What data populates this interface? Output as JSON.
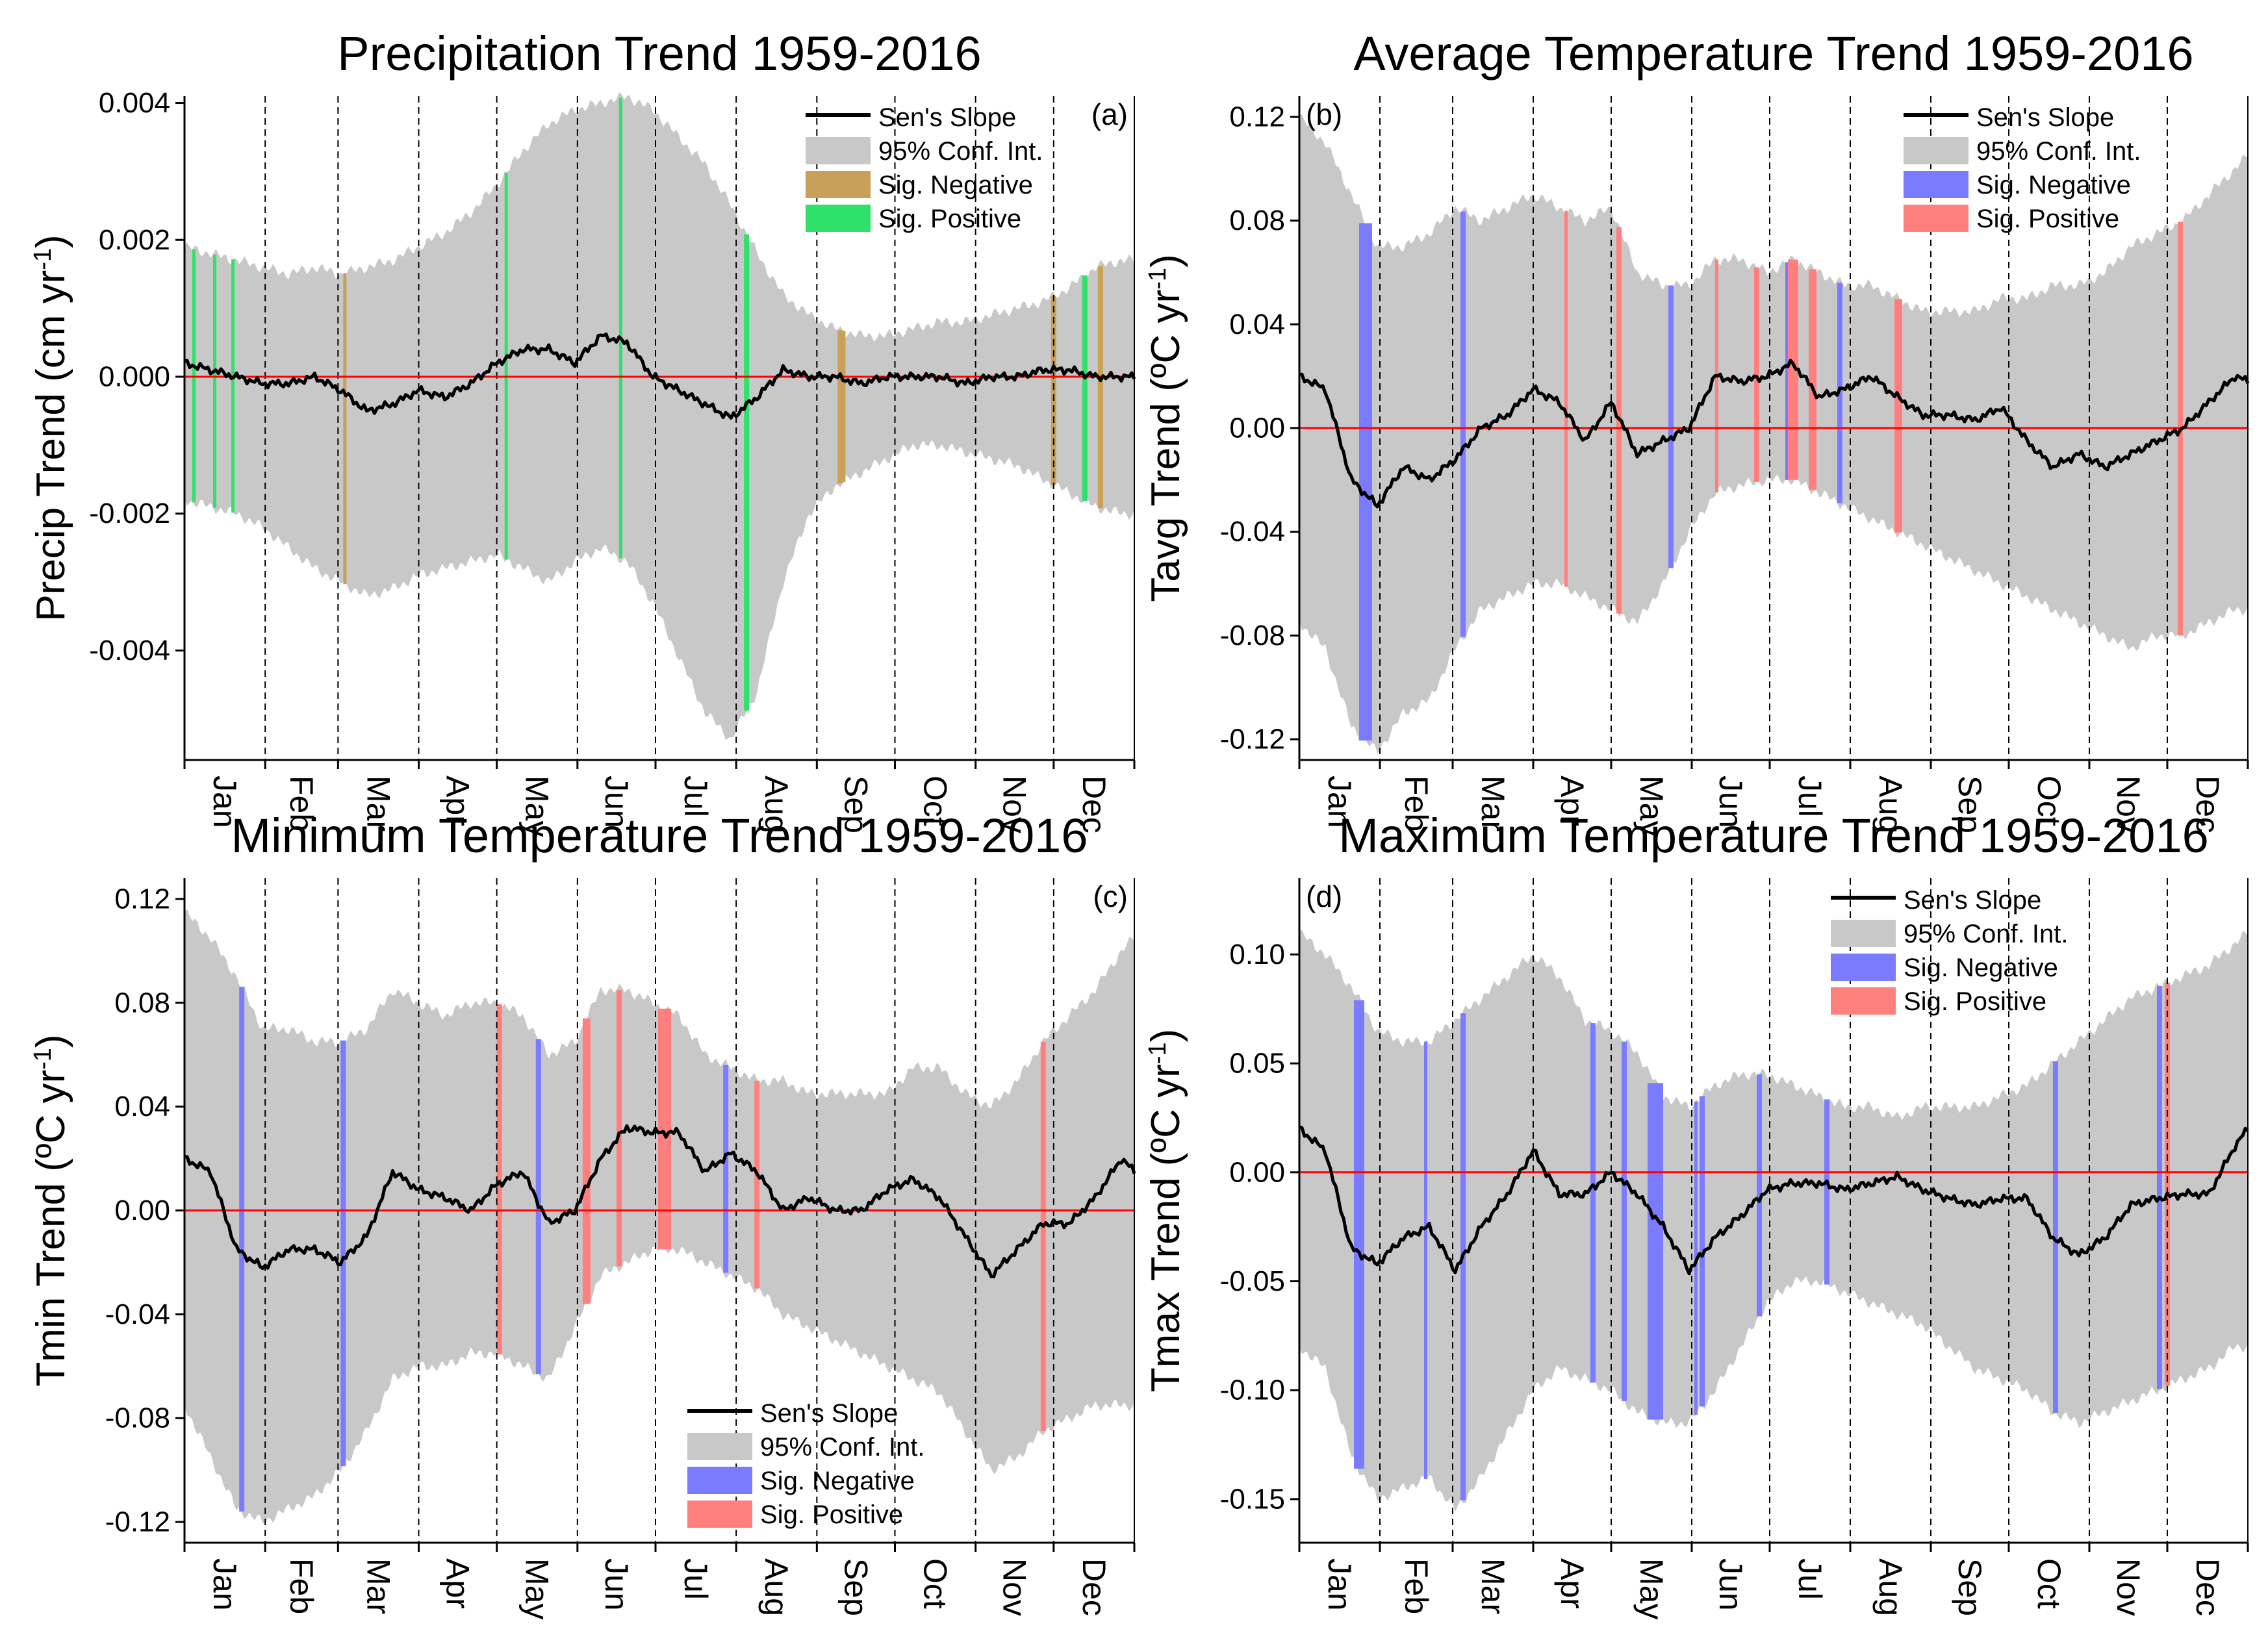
{
  "months": [
    "Jan",
    "Feb",
    "Mar",
    "Apr",
    "May",
    "Jun",
    "Jul",
    "Aug",
    "Sep",
    "Oct",
    "Nov",
    "Dec"
  ],
  "colors": {
    "ci": "#c8c8c8",
    "line": "#000000",
    "zero": "#ff0000",
    "prec_neg": "#c8a05a",
    "prec_pos": "#2fe06a",
    "temp_neg": "#7b7bff",
    "temp_pos": "#ff7f7f"
  },
  "chart_data": [
    {
      "id": "a",
      "type": "area",
      "panel_label": "(a)",
      "title": "Precipitation Trend 1959-2016",
      "ylabel_main": "Precip Trend (cm yr",
      "ylabel_sup": "-1",
      "ylabel_close": ")",
      "ylim": [
        -0.0056,
        0.0041
      ],
      "yticks": [
        0.004,
        0.002,
        0.0,
        -0.002,
        -0.004
      ],
      "ytick_labels": [
        "0.004",
        "0.002",
        "0.000",
        "-0.002",
        "-0.004"
      ],
      "legend_pos": "top-right",
      "legend": [
        "Sen's Slope",
        "95% Conf. Int.",
        "Sig. Negative",
        "Sig. Positive"
      ],
      "neg_color": "prec_neg",
      "pos_color": "prec_pos",
      "x": [
        0,
        10,
        20,
        30,
        40,
        50,
        60,
        70,
        80,
        90,
        100,
        110,
        120,
        130,
        140,
        150,
        160,
        170,
        180,
        190,
        200,
        210,
        220,
        230,
        240,
        250,
        260,
        270,
        280,
        290,
        300,
        310,
        320,
        330,
        340,
        350,
        360,
        365
      ],
      "slope": [
        0.0002,
        0.0001,
        0.0,
        -0.0001,
        -0.0001,
        0.0,
        -0.0002,
        -0.0005,
        -0.0004,
        -0.0002,
        -0.0003,
        -0.0001,
        0.0002,
        0.0004,
        0.0004,
        0.0002,
        0.0006,
        0.0005,
        0.0,
        -0.0002,
        -0.0004,
        -0.0006,
        -0.0003,
        0.0001,
        0.0,
        0.0,
        -0.0001,
        0.0,
        0.0,
        0.0,
        -0.0001,
        0.0,
        0.0,
        0.0001,
        0.0001,
        0.0,
        0.0,
        0.0
      ],
      "ci_upper": [
        0.0019,
        0.0018,
        0.0017,
        0.0016,
        0.0015,
        0.0016,
        0.0015,
        0.0016,
        0.0017,
        0.0019,
        0.0021,
        0.0024,
        0.0028,
        0.0033,
        0.0037,
        0.0039,
        0.004,
        0.0041,
        0.0039,
        0.0035,
        0.0031,
        0.0025,
        0.0018,
        0.0012,
        0.0009,
        0.0007,
        0.0006,
        0.0006,
        0.0007,
        0.0008,
        0.0008,
        0.0009,
        0.001,
        0.0011,
        0.0013,
        0.0016,
        0.0017,
        0.0017
      ],
      "ci_lower": [
        -0.0018,
        -0.0019,
        -0.002,
        -0.0022,
        -0.0025,
        -0.0028,
        -0.003,
        -0.0032,
        -0.0031,
        -0.0029,
        -0.0028,
        -0.0027,
        -0.0026,
        -0.0028,
        -0.003,
        -0.0027,
        -0.0025,
        -0.0027,
        -0.0033,
        -0.0041,
        -0.0049,
        -0.0053,
        -0.0046,
        -0.003,
        -0.002,
        -0.0016,
        -0.0014,
        -0.0012,
        -0.001,
        -0.001,
        -0.0011,
        -0.0012,
        -0.0013,
        -0.0015,
        -0.0017,
        -0.0019,
        -0.002,
        -0.002
      ],
      "sig_negative": [
        [
          61,
          62
        ],
        [
          252,
          254
        ],
        [
          251,
          253
        ],
        [
          333,
          335
        ],
        [
          351,
          353
        ]
      ],
      "sig_positive": [
        [
          3,
          4
        ],
        [
          11,
          12
        ],
        [
          18,
          19
        ],
        [
          123,
          124
        ],
        [
          167,
          168
        ],
        [
          215,
          217
        ],
        [
          345,
          347
        ]
      ]
    },
    {
      "id": "b",
      "type": "area",
      "panel_label": "(b)",
      "title": "Average Temperature Trend 1959-2016",
      "ylabel_main": "Tavg Trend (ºC yr",
      "ylabel_sup": "-1",
      "ylabel_close": ")",
      "ylim": [
        -0.128,
        0.128
      ],
      "yticks": [
        0.12,
        0.08,
        0.04,
        0.0,
        -0.04,
        -0.08,
        -0.12
      ],
      "ytick_labels": [
        "0.12",
        "0.08",
        "0.04",
        "0.00",
        "-0.04",
        "-0.08",
        "-0.12"
      ],
      "legend_pos": "top-right",
      "legend": [
        "Sen's Slope",
        "95% Conf. Int.",
        "Sig. Negative",
        "Sig. Positive"
      ],
      "neg_color": "temp_neg",
      "pos_color": "temp_pos",
      "x": [
        0,
        10,
        20,
        30,
        40,
        50,
        60,
        70,
        80,
        90,
        100,
        110,
        120,
        130,
        140,
        150,
        160,
        170,
        180,
        190,
        200,
        210,
        220,
        230,
        240,
        250,
        260,
        270,
        280,
        290,
        300,
        310,
        320,
        330,
        340,
        350,
        360,
        365
      ],
      "slope": [
        0.02,
        0.015,
        -0.02,
        -0.03,
        -0.015,
        -0.02,
        -0.012,
        0.0,
        0.005,
        0.015,
        0.01,
        -0.005,
        0.01,
        -0.01,
        -0.005,
        0.0,
        0.02,
        0.018,
        0.02,
        0.025,
        0.012,
        0.015,
        0.02,
        0.012,
        0.005,
        0.005,
        0.003,
        0.008,
        -0.005,
        -0.015,
        -0.01,
        -0.015,
        -0.01,
        -0.005,
        0.0,
        0.01,
        0.02,
        0.018
      ],
      "ci_upper": [
        0.12,
        0.11,
        0.09,
        0.07,
        0.07,
        0.075,
        0.085,
        0.08,
        0.085,
        0.09,
        0.085,
        0.08,
        0.085,
        0.06,
        0.055,
        0.055,
        0.065,
        0.065,
        0.06,
        0.065,
        0.06,
        0.055,
        0.055,
        0.05,
        0.045,
        0.045,
        0.045,
        0.05,
        0.05,
        0.055,
        0.055,
        0.06,
        0.07,
        0.075,
        0.08,
        0.09,
        0.1,
        0.105
      ],
      "ci_lower": [
        -0.075,
        -0.085,
        -0.115,
        -0.125,
        -0.11,
        -0.105,
        -0.085,
        -0.07,
        -0.065,
        -0.06,
        -0.06,
        -0.065,
        -0.07,
        -0.075,
        -0.06,
        -0.04,
        -0.025,
        -0.022,
        -0.02,
        -0.02,
        -0.025,
        -0.03,
        -0.035,
        -0.04,
        -0.045,
        -0.05,
        -0.055,
        -0.06,
        -0.065,
        -0.07,
        -0.075,
        -0.08,
        -0.085,
        -0.08,
        -0.08,
        -0.075,
        -0.07,
        -0.07
      ],
      "sig_negative": [
        [
          23,
          28
        ],
        [
          62,
          64
        ],
        [
          142,
          144
        ],
        [
          187,
          189
        ],
        [
          207,
          209
        ]
      ],
      "sig_positive": [
        [
          102,
          103
        ],
        [
          122,
          124
        ],
        [
          160,
          161
        ],
        [
          175,
          177
        ],
        [
          188,
          192
        ],
        [
          196,
          199
        ],
        [
          229,
          232
        ],
        [
          338,
          340
        ]
      ]
    },
    {
      "id": "c",
      "type": "area",
      "panel_label": "(c)",
      "title": "Minimum Temperature Trend 1959-2016",
      "ylabel_main": "Tmin Trend (ºC yr",
      "ylabel_sup": "-1",
      "ylabel_close": ")",
      "ylim": [
        -0.128,
        0.128
      ],
      "yticks": [
        0.12,
        0.08,
        0.04,
        0.0,
        -0.04,
        -0.08,
        -0.12
      ],
      "ytick_labels": [
        "0.12",
        "0.08",
        "0.04",
        "0.00",
        "-0.04",
        "-0.08",
        "-0.12"
      ],
      "legend_pos": "bottom-center",
      "legend": [
        "Sen's Slope",
        "95% Conf. Int.",
        "Sig. Negative",
        "Sig. Positive"
      ],
      "neg_color": "temp_neg",
      "pos_color": "temp_pos",
      "x": [
        0,
        10,
        20,
        30,
        40,
        50,
        60,
        70,
        80,
        90,
        100,
        110,
        120,
        130,
        140,
        150,
        160,
        170,
        180,
        190,
        200,
        210,
        220,
        230,
        240,
        250,
        260,
        270,
        280,
        290,
        300,
        310,
        320,
        330,
        340,
        350,
        360,
        365
      ],
      "slope": [
        0.02,
        0.015,
        -0.015,
        -0.022,
        -0.015,
        -0.015,
        -0.02,
        -0.01,
        0.015,
        0.008,
        0.005,
        0.0,
        0.01,
        0.015,
        -0.005,
        0.0,
        0.02,
        0.032,
        0.03,
        0.03,
        0.015,
        0.022,
        0.015,
        0.0,
        0.005,
        0.0,
        0.0,
        0.008,
        0.012,
        0.005,
        -0.01,
        -0.025,
        -0.015,
        -0.005,
        -0.005,
        0.005,
        0.02,
        0.015
      ],
      "ci_upper": [
        0.115,
        0.105,
        0.09,
        0.07,
        0.07,
        0.065,
        0.065,
        0.07,
        0.085,
        0.08,
        0.075,
        0.08,
        0.08,
        0.075,
        0.06,
        0.065,
        0.085,
        0.085,
        0.08,
        0.075,
        0.06,
        0.055,
        0.05,
        0.05,
        0.045,
        0.045,
        0.045,
        0.045,
        0.055,
        0.055,
        0.045,
        0.04,
        0.05,
        0.065,
        0.075,
        0.085,
        0.1,
        0.105
      ],
      "ci_lower": [
        -0.075,
        -0.095,
        -0.115,
        -0.12,
        -0.115,
        -0.11,
        -0.1,
        -0.085,
        -0.065,
        -0.06,
        -0.06,
        -0.055,
        -0.055,
        -0.06,
        -0.065,
        -0.045,
        -0.025,
        -0.02,
        -0.015,
        -0.015,
        -0.02,
        -0.025,
        -0.03,
        -0.04,
        -0.045,
        -0.05,
        -0.055,
        -0.06,
        -0.065,
        -0.07,
        -0.085,
        -0.1,
        -0.095,
        -0.085,
        -0.08,
        -0.075,
        -0.075,
        -0.075
      ],
      "sig_negative": [
        [
          21,
          23
        ],
        [
          60,
          62
        ],
        [
          135,
          137
        ],
        [
          207,
          209
        ]
      ],
      "sig_positive": [
        [
          120,
          122
        ],
        [
          153,
          156
        ],
        [
          166,
          168
        ],
        [
          182,
          187
        ],
        [
          219,
          221
        ],
        [
          329,
          331
        ]
      ]
    },
    {
      "id": "d",
      "type": "area",
      "panel_label": "(d)",
      "title": "Maximum Temperature Trend 1959-2016",
      "ylabel_main": "Tmax Trend (ºC yr",
      "ylabel_sup": "-1",
      "ylabel_close": ")",
      "ylim": [
        -0.17,
        0.135
      ],
      "yticks": [
        0.1,
        0.05,
        0.0,
        -0.05,
        -0.1,
        -0.15
      ],
      "ytick_labels": [
        "0.10",
        "0.05",
        "0.00",
        "-0.05",
        "-0.10",
        "-0.15"
      ],
      "legend_pos": "top-right",
      "legend": [
        "Sen's Slope",
        "95% Conf. Int.",
        "Sig. Negative",
        "Sig. Positive"
      ],
      "neg_color": "temp_neg",
      "pos_color": "temp_pos",
      "x": [
        0,
        10,
        20,
        30,
        40,
        50,
        60,
        70,
        80,
        90,
        100,
        110,
        120,
        130,
        140,
        150,
        160,
        170,
        180,
        190,
        200,
        210,
        220,
        230,
        240,
        250,
        260,
        270,
        280,
        290,
        300,
        310,
        320,
        330,
        340,
        350,
        360,
        365
      ],
      "slope": [
        0.02,
        0.01,
        -0.035,
        -0.042,
        -0.03,
        -0.025,
        -0.045,
        -0.025,
        -0.01,
        0.01,
        -0.01,
        -0.01,
        0.0,
        -0.01,
        -0.025,
        -0.045,
        -0.03,
        -0.02,
        -0.008,
        -0.005,
        -0.005,
        -0.008,
        -0.005,
        -0.002,
        -0.008,
        -0.012,
        -0.015,
        -0.012,
        -0.012,
        -0.03,
        -0.038,
        -0.03,
        -0.015,
        -0.012,
        -0.01,
        -0.01,
        0.012,
        0.02
      ],
      "ci_upper": [
        0.11,
        0.1,
        0.085,
        0.065,
        0.06,
        0.06,
        0.07,
        0.08,
        0.09,
        0.1,
        0.09,
        0.07,
        0.065,
        0.055,
        0.035,
        0.03,
        0.04,
        0.045,
        0.045,
        0.04,
        0.035,
        0.03,
        0.03,
        0.025,
        0.03,
        0.03,
        0.03,
        0.035,
        0.04,
        0.05,
        0.06,
        0.07,
        0.08,
        0.085,
        0.09,
        0.095,
        0.105,
        0.11
      ],
      "ci_lower": [
        -0.08,
        -0.09,
        -0.13,
        -0.15,
        -0.145,
        -0.14,
        -0.155,
        -0.14,
        -0.12,
        -0.1,
        -0.09,
        -0.095,
        -0.1,
        -0.11,
        -0.115,
        -0.115,
        -0.1,
        -0.08,
        -0.06,
        -0.05,
        -0.05,
        -0.055,
        -0.06,
        -0.065,
        -0.07,
        -0.08,
        -0.09,
        -0.095,
        -0.1,
        -0.11,
        -0.115,
        -0.11,
        -0.105,
        -0.1,
        -0.095,
        -0.09,
        -0.08,
        -0.08
      ],
      "sig_negative": [
        [
          21,
          25
        ],
        [
          48,
          49
        ],
        [
          62,
          64
        ],
        [
          112,
          114
        ],
        [
          124,
          126
        ],
        [
          134,
          140
        ],
        [
          152,
          153
        ],
        [
          154,
          156
        ],
        [
          176,
          178
        ],
        [
          202,
          204
        ],
        [
          290,
          292
        ],
        [
          330,
          332
        ]
      ],
      "sig_positive": [
        [
          333,
          335
        ]
      ]
    }
  ]
}
